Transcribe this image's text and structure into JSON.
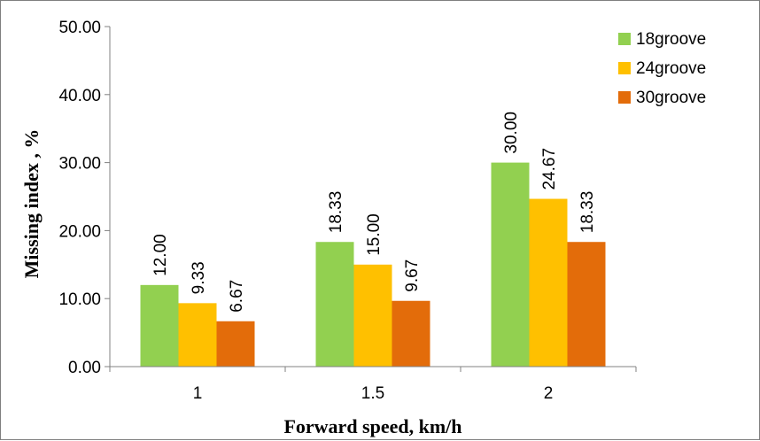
{
  "chart_data": {
    "type": "bar",
    "title": "",
    "xlabel": "Forward speed, km/h",
    "ylabel": "Missing index , %",
    "categories": [
      "1",
      "1.5",
      "2"
    ],
    "ylim": [
      0,
      50
    ],
    "yticks": [
      0,
      10,
      20,
      30,
      40,
      50
    ],
    "ytick_labels": [
      "0.00",
      "10.00",
      "20.00",
      "30.00",
      "40.00",
      "50.00"
    ],
    "grid": false,
    "legend_position": "top-right",
    "series": [
      {
        "name": "18groove",
        "color": "#92d050",
        "values": [
          12.0,
          18.33,
          30.0
        ],
        "labels": [
          "12.00",
          "18.33",
          "30.00"
        ]
      },
      {
        "name": "24groove",
        "color": "#ffc000",
        "values": [
          9.33,
          15.0,
          24.67
        ],
        "labels": [
          "9.33",
          "15.00",
          "24.67"
        ]
      },
      {
        "name": "30groove",
        "color": "#e36c0a",
        "values": [
          6.67,
          9.67,
          18.33
        ],
        "labels": [
          "6.67",
          "9.67",
          "18.33"
        ]
      }
    ]
  }
}
